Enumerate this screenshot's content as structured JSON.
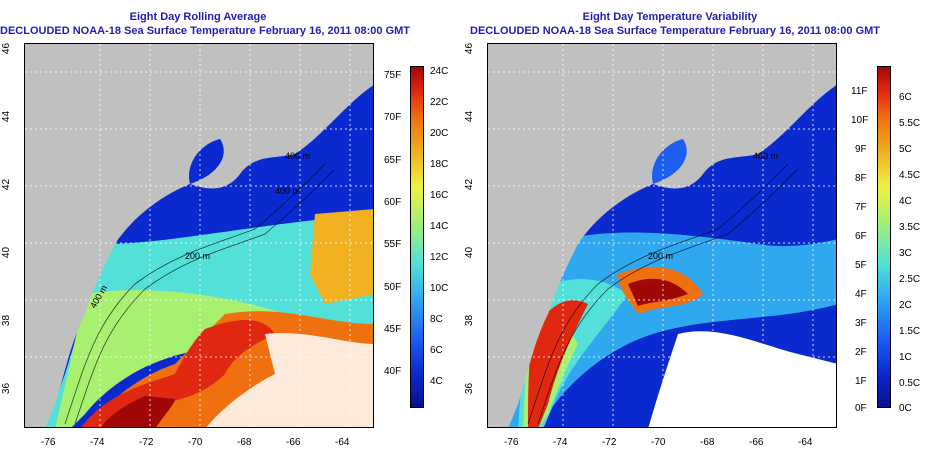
{
  "left_panel": {
    "title_line1": "Eight Day Rolling Average",
    "title_line2": "DECLOUDED NOAA-18 Sea Surface Temperature February 16, 2011 08:00 GMT",
    "colorbar_f": [
      "75F",
      "70F",
      "65F",
      "60F",
      "55F",
      "50F",
      "45F",
      "40F"
    ],
    "colorbar_c": [
      "24C",
      "22C",
      "20C",
      "18C",
      "16C",
      "14C",
      "12C",
      "10C",
      "8C",
      "6C",
      "4C"
    ],
    "contours": [
      "400 m",
      "400 m",
      "200 m",
      "400 m"
    ],
    "colors": [
      "#08108c",
      "#0a2ad0",
      "#1c5ef0",
      "#2fa8f0",
      "#52e0d8",
      "#a8f070",
      "#f0f040",
      "#f0b020",
      "#f07010",
      "#e02810",
      "#a00808"
    ]
  },
  "right_panel": {
    "title_line1": "Eight Day Temperature Variability",
    "title_line2": "DECLOUDED NOAA-18 Sea Surface Temperature February 16, 2011 08:00 GMT",
    "colorbar_f": [
      "11F",
      "10F",
      "9F",
      "8F",
      "7F",
      "6F",
      "5F",
      "4F",
      "3F",
      "2F",
      "1F",
      "0F"
    ],
    "colorbar_c": [
      "6C",
      "5.5C",
      "5C",
      "4.5C",
      "4C",
      "3.5C",
      "3C",
      "2.5C",
      "2C",
      "1.5C",
      "1C",
      "0.5C",
      "0C"
    ],
    "contours": [
      "400 m",
      "200 m"
    ],
    "colors": [
      "#08108c",
      "#0a2ad0",
      "#1c5ef0",
      "#2fa8f0",
      "#52e0d8",
      "#a8f070",
      "#f0f040",
      "#f0b020",
      "#f07010",
      "#e02810",
      "#a00808"
    ]
  },
  "lon_ticks": [
    "-76",
    "-74",
    "-72",
    "-70",
    "-68",
    "-66",
    "-64"
  ],
  "lat_ticks": [
    "46",
    "44",
    "42",
    "40",
    "38",
    "36"
  ],
  "land_color": "#c0c0c0"
}
